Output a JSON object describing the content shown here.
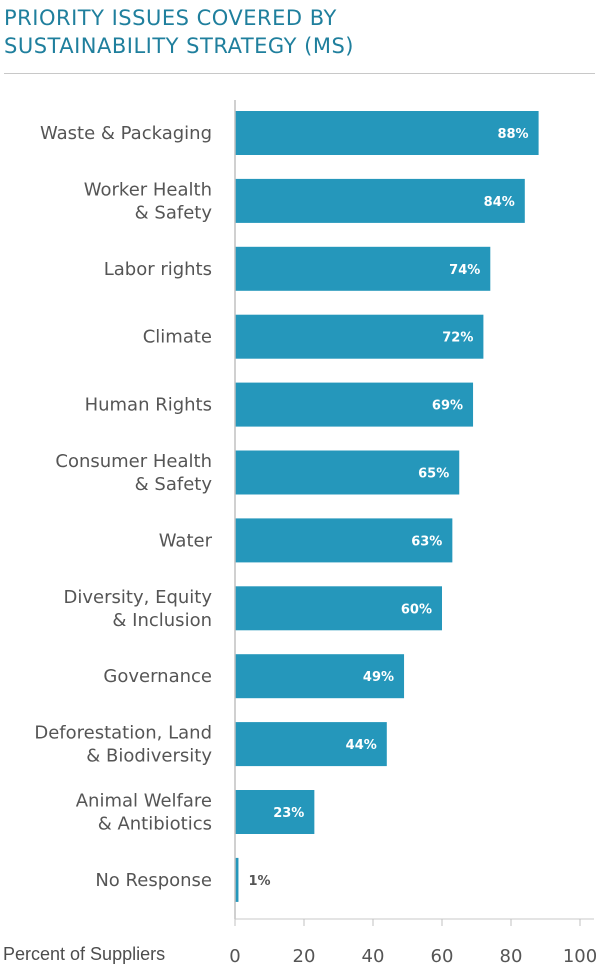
{
  "title_line1": "PRIORITY ISSUES COVERED BY",
  "title_line2": "SUSTAINABILITY STRATEGY (MS)",
  "colors": {
    "bar": "#2597bb",
    "title": "#1f7f9d",
    "inside_label": "#ffffff",
    "outside_label": "#555555"
  },
  "chart_data": {
    "type": "bar",
    "orientation": "horizontal",
    "categories": [
      [
        "Waste & Packaging"
      ],
      [
        "Worker Health",
        "& Safety"
      ],
      [
        "Labor rights"
      ],
      [
        "Climate"
      ],
      [
        "Human Rights"
      ],
      [
        "Consumer Health",
        "& Safety"
      ],
      [
        "Water"
      ],
      [
        "Diversity, Equity",
        "& Inclusion"
      ],
      [
        "Governance"
      ],
      [
        "Deforestation, Land",
        "& Biodiversity"
      ],
      [
        "Animal Welfare",
        "& Antibiotics"
      ],
      [
        "No Response"
      ]
    ],
    "values": [
      88,
      84,
      74,
      72,
      69,
      65,
      63,
      60,
      49,
      44,
      23,
      1
    ],
    "value_labels": [
      "88%",
      "84%",
      "74%",
      "72%",
      "69%",
      "65%",
      "63%",
      "60%",
      "49%",
      "44%",
      "23%",
      "1%"
    ],
    "xlabel": "Percent of Suppliers",
    "xlim": [
      0,
      100
    ],
    "xticks": [
      "0",
      "20",
      "40",
      "60",
      "80",
      "100"
    ]
  }
}
